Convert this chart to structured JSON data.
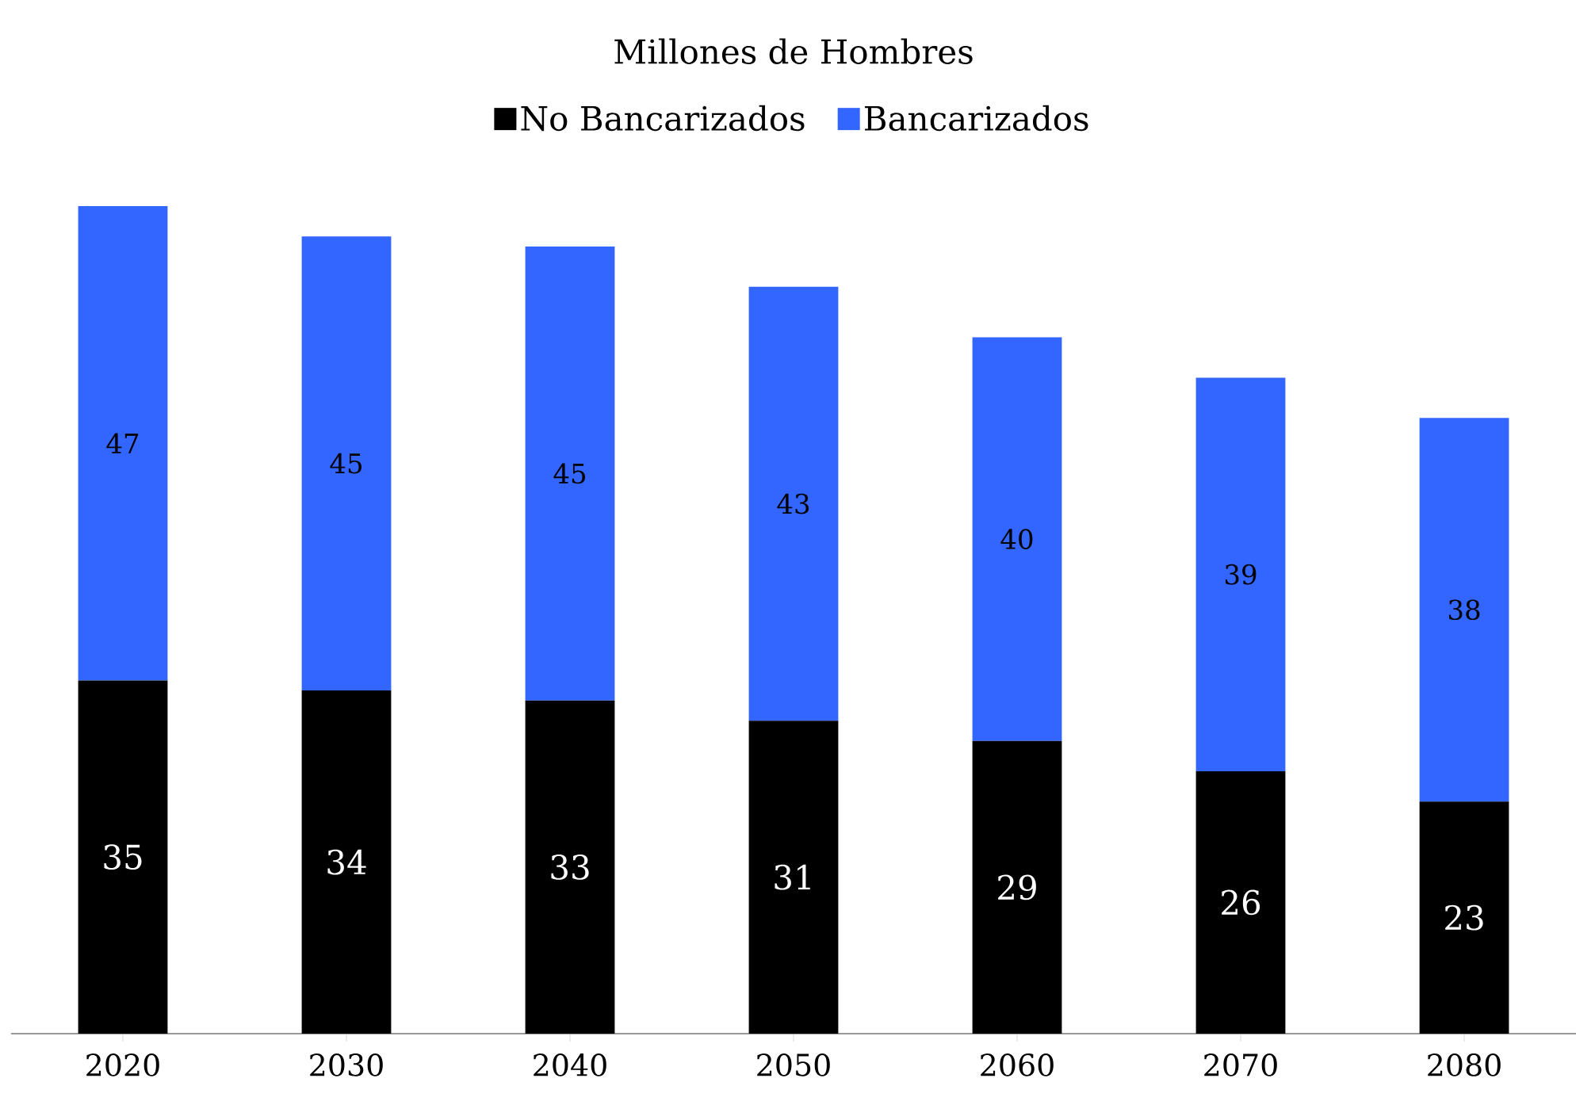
{
  "chart_data": {
    "type": "bar",
    "stacked": true,
    "title": "Millones de Hombres",
    "categories": [
      "2020",
      "2030",
      "2040",
      "2050",
      "2060",
      "2070",
      "2080"
    ],
    "series": [
      {
        "name": "No Bancarizados",
        "color": "#000000",
        "values": [
          35,
          34,
          33,
          31,
          29,
          26,
          23
        ]
      },
      {
        "name": "Bancarizados",
        "color": "#3366ff",
        "values": [
          47,
          45,
          45,
          43,
          40,
          39,
          38
        ]
      }
    ],
    "data_labels": true,
    "legend": "top"
  }
}
